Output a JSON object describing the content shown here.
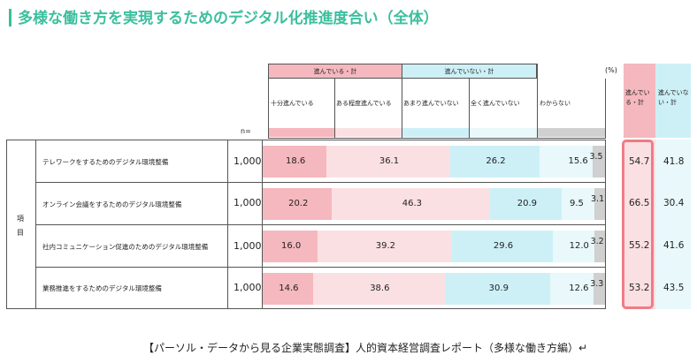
{
  "title": "多様な働き方を実現するためのデジタル化推進度合い（全体）",
  "header": {
    "group_progress": "進んでいる・計",
    "group_not_progress": "進んでいない・計",
    "unit": "(%)",
    "n_label": "n=",
    "item_label": "項目",
    "sum_progress": "進んでいる・計",
    "sum_not_progress": "進んでいない・計"
  },
  "colors": {
    "accent": "#3cbf9e",
    "pink_dark": "#f5b8be",
    "pink_light": "#fbe0e3",
    "blue_light": "#cdf0f7",
    "blue_pale": "#e8f8fb",
    "gray": "#d0d0d0",
    "highlight": "#f07b85"
  },
  "chart_data": {
    "type": "bar",
    "stacked": true,
    "orientation": "horizontal",
    "categories": [
      "テレワークをするためのデジタル環境整備",
      "オンライン会議をするためのデジタル環境整備",
      "社内コミュニケーション促進のためのデジタル環境整備",
      "業務推進をするためのデジタル環境整備"
    ],
    "n": [
      "1,000",
      "1,000",
      "1,000",
      "1,000"
    ],
    "series": [
      {
        "name": "十分進んでいる",
        "values": [
          18.6,
          20.2,
          16.0,
          14.6
        ]
      },
      {
        "name": "ある程度進んでいる",
        "values": [
          36.1,
          46.3,
          39.2,
          38.6
        ]
      },
      {
        "name": "あまり進んでいない",
        "values": [
          26.2,
          20.9,
          29.6,
          30.9
        ]
      },
      {
        "name": "全く進んでいない",
        "values": [
          15.6,
          9.5,
          12.0,
          12.6
        ]
      },
      {
        "name": "わからない",
        "values": [
          3.5,
          3.1,
          3.2,
          3.3
        ]
      }
    ],
    "summary": {
      "progress_total": [
        54.7,
        66.5,
        55.2,
        53.2
      ],
      "not_progress_total": [
        41.8,
        30.4,
        41.6,
        43.5
      ]
    },
    "xlim": [
      0,
      100
    ]
  },
  "footnote": "【パーソル・データから見る企業実態調査】人的資本経営調査レポート（多様な働き方編）↵"
}
